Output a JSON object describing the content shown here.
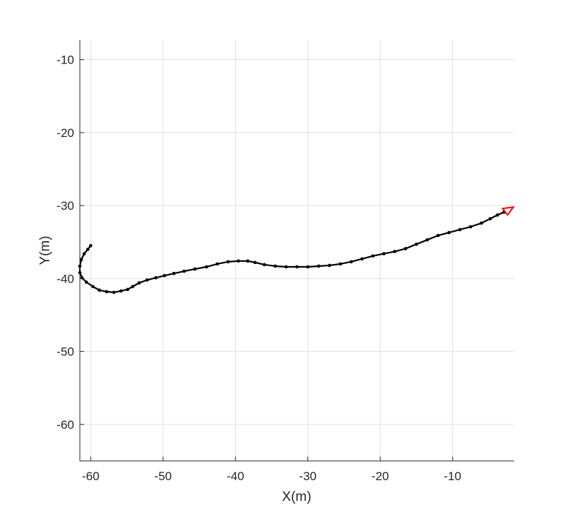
{
  "chart_data": {
    "type": "scatter",
    "title": "",
    "xlabel": "X(m)",
    "ylabel": "Y(m)",
    "xlim": [
      -61.5,
      -1.5
    ],
    "ylim": [
      -65,
      -7.3
    ],
    "xticks": [
      -60,
      -50,
      -40,
      -30,
      -20,
      -10
    ],
    "yticks": [
      -60,
      -50,
      -40,
      -30,
      -20,
      -10
    ],
    "grid": true,
    "colors": {
      "trajectory": "#000000",
      "heading_marker": "#ff0000",
      "grid": "#e0e0e0",
      "axis": "#262626"
    },
    "series": [
      {
        "marker": "dot",
        "x": [
          -60.0,
          -60.4,
          -60.9,
          -61.3,
          -61.5,
          -61.5,
          -61.2,
          -60.6,
          -59.7,
          -58.8,
          -57.8,
          -56.8,
          -55.8,
          -54.9,
          -54.2,
          -53.3,
          -52.2,
          -51.0,
          -49.8,
          -48.5,
          -47.1,
          -45.6,
          -44.0,
          -42.5,
          -41.0,
          -39.6,
          -38.3,
          -37.3,
          -36.0,
          -34.5,
          -33.0,
          -31.5,
          -30.0,
          -28.5,
          -27.0,
          -25.5,
          -24.0,
          -22.5,
          -21.0,
          -19.5,
          -18.0,
          -16.5,
          -15.0,
          -13.5,
          -12.0,
          -10.5,
          -9.0,
          -7.5,
          -6.0,
          -4.8,
          -3.8,
          -2.9
        ],
        "y": [
          -35.5,
          -36.0,
          -36.6,
          -37.4,
          -38.3,
          -39.2,
          -39.9,
          -40.5,
          -41.1,
          -41.6,
          -41.8,
          -41.9,
          -41.7,
          -41.5,
          -41.1,
          -40.6,
          -40.2,
          -39.9,
          -39.6,
          -39.3,
          -39.0,
          -38.7,
          -38.4,
          -38.0,
          -37.7,
          -37.6,
          -37.6,
          -37.8,
          -38.1,
          -38.3,
          -38.4,
          -38.4,
          -38.4,
          -38.3,
          -38.2,
          -38.0,
          -37.7,
          -37.3,
          -36.9,
          -36.6,
          -36.3,
          -35.9,
          -35.3,
          -34.7,
          -34.1,
          -33.7,
          -33.3,
          -32.9,
          -32.4,
          -31.8,
          -31.3,
          -30.9
        ]
      }
    ],
    "heading_marker": {
      "x": -2.2,
      "y": -30.6,
      "direction": "right-up"
    }
  }
}
